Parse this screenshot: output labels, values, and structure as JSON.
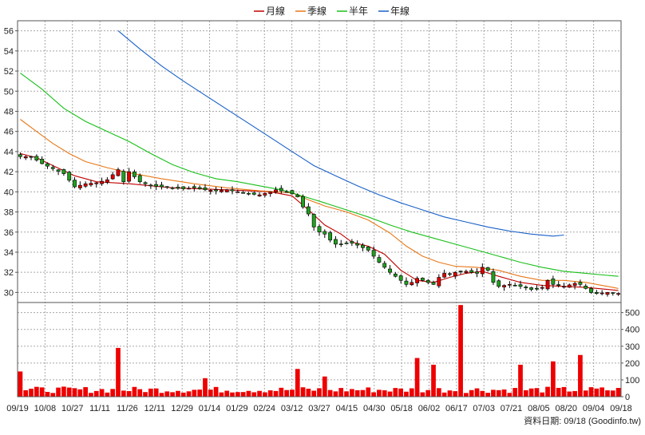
{
  "chart_data": {
    "type": "candlestick+volume",
    "legend": [
      {
        "name": "月線",
        "color": "#c00000"
      },
      {
        "name": "季線",
        "color": "#e87818"
      },
      {
        "name": "半年",
        "color": "#18c018"
      },
      {
        "name": "年線",
        "color": "#1860c8"
      }
    ],
    "price_axis": {
      "ylim": [
        29,
        57
      ],
      "ticks": [
        30,
        32,
        34,
        36,
        38,
        40,
        42,
        44,
        46,
        48,
        50,
        52,
        54,
        56
      ]
    },
    "volume_axis": {
      "ylim": [
        0,
        560
      ],
      "ticks": [
        0,
        100,
        200,
        300,
        400,
        500
      ]
    },
    "x_labels": [
      "09/19",
      "10/08",
      "10/27",
      "11/11",
      "11/26",
      "12/11",
      "12/29",
      "01/14",
      "01/29",
      "02/24",
      "03/12",
      "03/27",
      "04/15",
      "04/30",
      "05/18",
      "06/02",
      "06/17",
      "07/03",
      "07/21",
      "08/05",
      "08/20",
      "09/04",
      "09/18"
    ],
    "close_anchors": [
      [
        0,
        43.5
      ],
      [
        2,
        43.5
      ],
      [
        4,
        42.8
      ],
      [
        6,
        42.3
      ],
      [
        8,
        41.8
      ],
      [
        10,
        40.5
      ],
      [
        12,
        40.8
      ],
      [
        14,
        40.9
      ],
      [
        16,
        41.2
      ],
      [
        18,
        42.2
      ],
      [
        19,
        41.0
      ],
      [
        20,
        42.0
      ],
      [
        21,
        41.5
      ],
      [
        22,
        41.0
      ],
      [
        24,
        40.6
      ],
      [
        26,
        40.5
      ],
      [
        28,
        40.4
      ],
      [
        30,
        40.3
      ],
      [
        32,
        40.4
      ],
      [
        34,
        40.2
      ],
      [
        36,
        40.1
      ],
      [
        38,
        40.2
      ],
      [
        40,
        40.0
      ],
      [
        42,
        39.8
      ],
      [
        44,
        39.7
      ],
      [
        46,
        40.0
      ],
      [
        47,
        40.2
      ],
      [
        49,
        40.0
      ],
      [
        50,
        39.8
      ],
      [
        51,
        39.5
      ],
      [
        52,
        38.5
      ],
      [
        53,
        37.8
      ],
      [
        54,
        36.5
      ],
      [
        55,
        36.0
      ],
      [
        56,
        35.8
      ],
      [
        57,
        35.2
      ],
      [
        58,
        34.8
      ],
      [
        59,
        34.8
      ],
      [
        60,
        34.9
      ],
      [
        61,
        34.9
      ],
      [
        62,
        34.7
      ],
      [
        64,
        34.2
      ],
      [
        66,
        33.0
      ],
      [
        68,
        32.0
      ],
      [
        70,
        31.2
      ],
      [
        71,
        30.8
      ],
      [
        72,
        31.0
      ],
      [
        73,
        31.4
      ],
      [
        75,
        31.0
      ],
      [
        76,
        30.8
      ],
      [
        77,
        31.5
      ],
      [
        78,
        31.9
      ],
      [
        79,
        31.8
      ],
      [
        80,
        32.0
      ],
      [
        82,
        32.1
      ],
      [
        84,
        31.9
      ],
      [
        85,
        32.5
      ],
      [
        86,
        32.2
      ],
      [
        87,
        31.0
      ],
      [
        88,
        30.6
      ],
      [
        90,
        30.8
      ],
      [
        92,
        30.6
      ],
      [
        94,
        30.3
      ],
      [
        96,
        30.5
      ],
      [
        97,
        31.2
      ],
      [
        98,
        30.8
      ],
      [
        100,
        30.6
      ],
      [
        102,
        30.9
      ],
      [
        103,
        30.8
      ],
      [
        104,
        30.4
      ],
      [
        105,
        30.0
      ],
      [
        106,
        29.9
      ],
      [
        108,
        30.0
      ],
      [
        110,
        29.9
      ]
    ],
    "volume_spikes": {
      "0": 150,
      "18": 290,
      "34": 110,
      "51": 165,
      "56": 120,
      "73": 230,
      "76": 190,
      "81": 545,
      "92": 190,
      "98": 210,
      "103": 248
    },
    "ma": {
      "月線": [
        [
          0,
          43.8
        ],
        [
          3,
          43.4
        ],
        [
          6,
          42.6
        ],
        [
          10,
          41.6
        ],
        [
          14,
          41.0
        ],
        [
          20,
          40.8
        ],
        [
          28,
          40.4
        ],
        [
          38,
          40.2
        ],
        [
          46,
          40.0
        ],
        [
          50,
          39.6
        ],
        [
          53,
          38.2
        ],
        [
          56,
          36.7
        ],
        [
          59,
          35.8
        ],
        [
          61,
          35.0
        ],
        [
          64,
          34.6
        ],
        [
          67,
          33.8
        ],
        [
          70,
          32.2
        ],
        [
          73,
          31.2
        ],
        [
          76,
          31.0
        ],
        [
          79,
          31.5
        ],
        [
          82,
          31.9
        ],
        [
          85,
          32.1
        ],
        [
          88,
          31.6
        ],
        [
          92,
          31.0
        ],
        [
          96,
          30.7
        ],
        [
          100,
          30.6
        ],
        [
          104,
          30.5
        ],
        [
          108,
          30.3
        ],
        [
          110,
          30.2
        ]
      ],
      "季線": [
        [
          0,
          47.2
        ],
        [
          3,
          46.0
        ],
        [
          6,
          44.8
        ],
        [
          9,
          43.8
        ],
        [
          12,
          43.0
        ],
        [
          16,
          42.4
        ],
        [
          20,
          41.9
        ],
        [
          26,
          41.3
        ],
        [
          32,
          40.8
        ],
        [
          38,
          40.4
        ],
        [
          44,
          40.1
        ],
        [
          50,
          39.9
        ],
        [
          53,
          39.2
        ],
        [
          56,
          38.6
        ],
        [
          60,
          38.0
        ],
        [
          64,
          37.2
        ],
        [
          68,
          35.9
        ],
        [
          71,
          34.6
        ],
        [
          74,
          33.6
        ],
        [
          77,
          33.0
        ],
        [
          80,
          32.6
        ],
        [
          84,
          32.5
        ],
        [
          88,
          32.2
        ],
        [
          92,
          31.6
        ],
        [
          96,
          31.2
        ],
        [
          100,
          31.2
        ],
        [
          104,
          31.0
        ],
        [
          108,
          30.6
        ],
        [
          110,
          30.4
        ]
      ],
      "半年": [
        [
          0,
          51.8
        ],
        [
          4,
          50.2
        ],
        [
          8,
          48.3
        ],
        [
          12,
          47.0
        ],
        [
          16,
          46.0
        ],
        [
          20,
          45.0
        ],
        [
          24,
          43.8
        ],
        [
          28,
          42.7
        ],
        [
          32,
          41.9
        ],
        [
          36,
          41.3
        ],
        [
          40,
          41.0
        ],
        [
          44,
          40.6
        ],
        [
          48,
          40.2
        ],
        [
          50,
          39.9
        ],
        [
          53,
          39.4
        ],
        [
          56,
          38.9
        ],
        [
          60,
          38.2
        ],
        [
          64,
          37.5
        ],
        [
          68,
          36.7
        ],
        [
          72,
          36.0
        ],
        [
          76,
          35.4
        ],
        [
          80,
          34.8
        ],
        [
          84,
          34.2
        ],
        [
          88,
          33.6
        ],
        [
          92,
          33.0
        ],
        [
          96,
          32.5
        ],
        [
          100,
          32.1
        ],
        [
          104,
          31.9
        ],
        [
          108,
          31.7
        ],
        [
          110,
          31.6
        ]
      ],
      "年線": [
        [
          18,
          56.0
        ],
        [
          22,
          54.2
        ],
        [
          26,
          52.5
        ],
        [
          30,
          51.0
        ],
        [
          34,
          49.6
        ],
        [
          38,
          48.2
        ],
        [
          42,
          46.8
        ],
        [
          46,
          45.4
        ],
        [
          50,
          44.0
        ],
        [
          54,
          42.6
        ],
        [
          58,
          41.6
        ],
        [
          62,
          40.6
        ],
        [
          66,
          39.7
        ],
        [
          70,
          38.9
        ],
        [
          74,
          38.2
        ],
        [
          78,
          37.5
        ],
        [
          82,
          37.0
        ],
        [
          86,
          36.5
        ],
        [
          90,
          36.1
        ],
        [
          94,
          35.8
        ],
        [
          98,
          35.6
        ],
        [
          100,
          35.7
        ]
      ]
    },
    "credit": "資料日期: 09/18 (Goodinfo.tw)"
  }
}
